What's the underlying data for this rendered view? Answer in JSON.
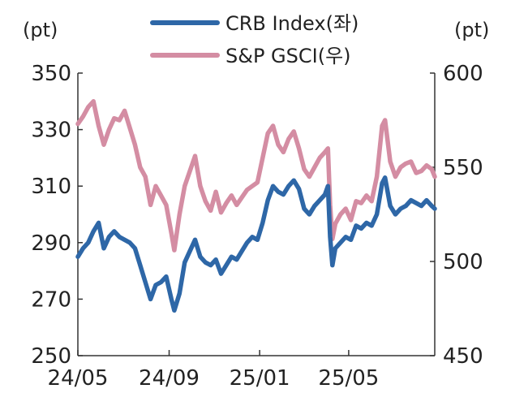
{
  "chart_data": {
    "type": "line",
    "title": "",
    "y_left_unit": "(pt)",
    "y_right_unit": "(pt)",
    "ylim_left": [
      250,
      350
    ],
    "ylim_right": [
      450,
      600
    ],
    "yticks_left": [
      "250",
      "270",
      "290",
      "310",
      "330",
      "350"
    ],
    "yticks_right": [
      "450",
      "500",
      "550",
      "600"
    ],
    "x_ticks": [
      "24/05",
      "24/09",
      "25/01",
      "25/05"
    ],
    "x_tick_dates": [
      "2024-05-01",
      "2024-09-01",
      "2025-01-01",
      "2025-05-01"
    ],
    "x_range": [
      "2024-05-01",
      "2025-08-25"
    ],
    "grid": false,
    "legend_position": "top-center",
    "series": [
      {
        "name": "CRB Index(좌)",
        "axis": "left",
        "color": "#2e67a7",
        "points": [
          [
            "2024-05-01",
            285
          ],
          [
            "2024-05-08",
            288
          ],
          [
            "2024-05-15",
            290
          ],
          [
            "2024-05-22",
            294
          ],
          [
            "2024-05-29",
            297
          ],
          [
            "2024-06-05",
            288
          ],
          [
            "2024-06-12",
            292
          ],
          [
            "2024-06-19",
            294
          ],
          [
            "2024-06-26",
            292
          ],
          [
            "2024-07-03",
            291
          ],
          [
            "2024-07-10",
            290
          ],
          [
            "2024-07-17",
            288
          ],
          [
            "2024-07-24",
            282
          ],
          [
            "2024-07-31",
            276
          ],
          [
            "2024-08-07",
            270
          ],
          [
            "2024-08-14",
            275
          ],
          [
            "2024-08-21",
            276
          ],
          [
            "2024-08-28",
            278
          ],
          [
            "2024-09-04",
            270
          ],
          [
            "2024-09-08",
            266
          ],
          [
            "2024-09-15",
            272
          ],
          [
            "2024-09-22",
            283
          ],
          [
            "2024-09-29",
            287
          ],
          [
            "2024-10-06",
            291
          ],
          [
            "2024-10-13",
            285
          ],
          [
            "2024-10-20",
            283
          ],
          [
            "2024-10-27",
            282
          ],
          [
            "2024-11-03",
            284
          ],
          [
            "2024-11-10",
            279
          ],
          [
            "2024-11-17",
            282
          ],
          [
            "2024-11-24",
            285
          ],
          [
            "2024-12-01",
            284
          ],
          [
            "2024-12-08",
            287
          ],
          [
            "2024-12-15",
            290
          ],
          [
            "2024-12-22",
            292
          ],
          [
            "2024-12-29",
            291
          ],
          [
            "2025-01-05",
            297
          ],
          [
            "2025-01-12",
            305
          ],
          [
            "2025-01-19",
            310
          ],
          [
            "2025-01-26",
            308
          ],
          [
            "2025-02-02",
            307
          ],
          [
            "2025-02-09",
            310
          ],
          [
            "2025-02-16",
            312
          ],
          [
            "2025-02-23",
            309
          ],
          [
            "2025-03-02",
            302
          ],
          [
            "2025-03-09",
            300
          ],
          [
            "2025-03-16",
            303
          ],
          [
            "2025-03-23",
            305
          ],
          [
            "2025-03-30",
            307
          ],
          [
            "2025-04-03",
            310
          ],
          [
            "2025-04-06",
            292
          ],
          [
            "2025-04-09",
            282
          ],
          [
            "2025-04-13",
            288
          ],
          [
            "2025-04-20",
            290
          ],
          [
            "2025-04-27",
            292
          ],
          [
            "2025-05-04",
            291
          ],
          [
            "2025-05-11",
            296
          ],
          [
            "2025-05-18",
            295
          ],
          [
            "2025-05-25",
            297
          ],
          [
            "2025-06-01",
            296
          ],
          [
            "2025-06-08",
            300
          ],
          [
            "2025-06-15",
            311
          ],
          [
            "2025-06-19",
            313
          ],
          [
            "2025-06-26",
            303
          ],
          [
            "2025-07-03",
            300
          ],
          [
            "2025-07-10",
            302
          ],
          [
            "2025-07-17",
            303
          ],
          [
            "2025-07-24",
            305
          ],
          [
            "2025-07-31",
            304
          ],
          [
            "2025-08-07",
            303
          ],
          [
            "2025-08-14",
            305
          ],
          [
            "2025-08-21",
            303
          ],
          [
            "2025-08-25",
            302
          ]
        ]
      },
      {
        "name": "S&P GSCI(우)",
        "axis": "right",
        "color": "#d48da3",
        "points": [
          [
            "2024-05-01",
            573
          ],
          [
            "2024-05-08",
            577
          ],
          [
            "2024-05-15",
            582
          ],
          [
            "2024-05-22",
            585
          ],
          [
            "2024-05-29",
            572
          ],
          [
            "2024-06-05",
            562
          ],
          [
            "2024-06-12",
            570
          ],
          [
            "2024-06-19",
            576
          ],
          [
            "2024-06-26",
            575
          ],
          [
            "2024-07-03",
            580
          ],
          [
            "2024-07-10",
            571
          ],
          [
            "2024-07-17",
            562
          ],
          [
            "2024-07-24",
            550
          ],
          [
            "2024-07-31",
            545
          ],
          [
            "2024-08-07",
            530
          ],
          [
            "2024-08-14",
            540
          ],
          [
            "2024-08-21",
            535
          ],
          [
            "2024-08-28",
            530
          ],
          [
            "2024-09-04",
            515
          ],
          [
            "2024-09-08",
            506
          ],
          [
            "2024-09-15",
            525
          ],
          [
            "2024-09-22",
            540
          ],
          [
            "2024-09-29",
            548
          ],
          [
            "2024-10-06",
            556
          ],
          [
            "2024-10-13",
            540
          ],
          [
            "2024-10-20",
            532
          ],
          [
            "2024-10-27",
            527
          ],
          [
            "2024-11-03",
            537
          ],
          [
            "2024-11-10",
            526
          ],
          [
            "2024-11-17",
            531
          ],
          [
            "2024-11-24",
            535
          ],
          [
            "2024-12-01",
            530
          ],
          [
            "2024-12-08",
            534
          ],
          [
            "2024-12-15",
            538
          ],
          [
            "2024-12-22",
            540
          ],
          [
            "2024-12-29",
            542
          ],
          [
            "2025-01-05",
            555
          ],
          [
            "2025-01-12",
            568
          ],
          [
            "2025-01-19",
            572
          ],
          [
            "2025-01-26",
            562
          ],
          [
            "2025-02-02",
            558
          ],
          [
            "2025-02-09",
            565
          ],
          [
            "2025-02-16",
            569
          ],
          [
            "2025-02-23",
            560
          ],
          [
            "2025-03-02",
            549
          ],
          [
            "2025-03-09",
            545
          ],
          [
            "2025-03-16",
            550
          ],
          [
            "2025-03-23",
            555
          ],
          [
            "2025-03-30",
            558
          ],
          [
            "2025-04-03",
            560
          ],
          [
            "2025-04-06",
            530
          ],
          [
            "2025-04-09",
            512
          ],
          [
            "2025-04-13",
            520
          ],
          [
            "2025-04-20",
            525
          ],
          [
            "2025-04-27",
            528
          ],
          [
            "2025-05-04",
            522
          ],
          [
            "2025-05-11",
            532
          ],
          [
            "2025-05-18",
            531
          ],
          [
            "2025-05-25",
            535
          ],
          [
            "2025-06-01",
            532
          ],
          [
            "2025-06-08",
            545
          ],
          [
            "2025-06-15",
            572
          ],
          [
            "2025-06-19",
            575
          ],
          [
            "2025-06-26",
            553
          ],
          [
            "2025-07-03",
            545
          ],
          [
            "2025-07-10",
            550
          ],
          [
            "2025-07-17",
            552
          ],
          [
            "2025-07-24",
            553
          ],
          [
            "2025-07-31",
            547
          ],
          [
            "2025-08-07",
            548
          ],
          [
            "2025-08-14",
            551
          ],
          [
            "2025-08-21",
            549
          ],
          [
            "2025-08-25",
            545
          ]
        ]
      }
    ]
  }
}
